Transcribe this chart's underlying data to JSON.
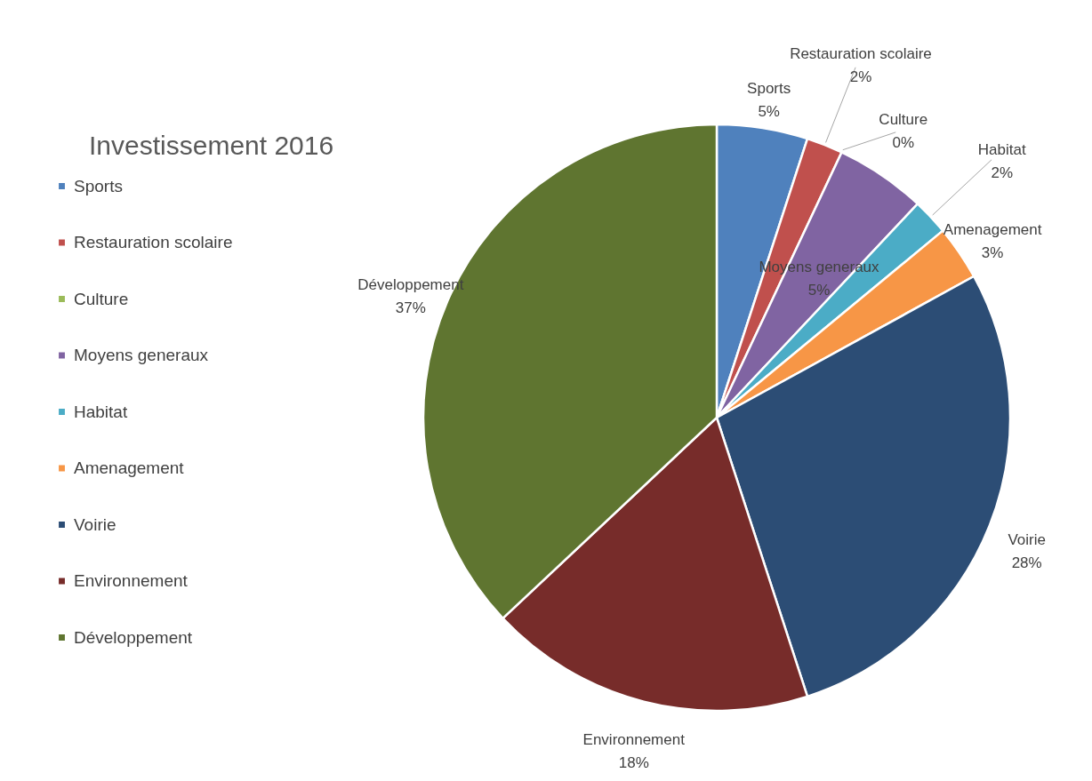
{
  "chart_data": {
    "type": "pie",
    "title": "Investissement 2016",
    "categories": [
      "Sports",
      "Restauration scolaire",
      "Culture",
      "Moyens generaux",
      "Habitat",
      "Amenagement",
      "Voirie",
      "Environnement",
      "Développement"
    ],
    "values": [
      5,
      2,
      0,
      5,
      2,
      3,
      28,
      18,
      37
    ],
    "value_labels": [
      "5%",
      "2%",
      "0%",
      "5%",
      "2%",
      "3%",
      "28%",
      "18%",
      "37%"
    ],
    "colors": [
      "#4f81bd",
      "#c0504d",
      "#9bbb59",
      "#8064a2",
      "#4bacc6",
      "#f79646",
      "#2c4d75",
      "#772c2a",
      "#5f7530"
    ],
    "legend": "left"
  }
}
